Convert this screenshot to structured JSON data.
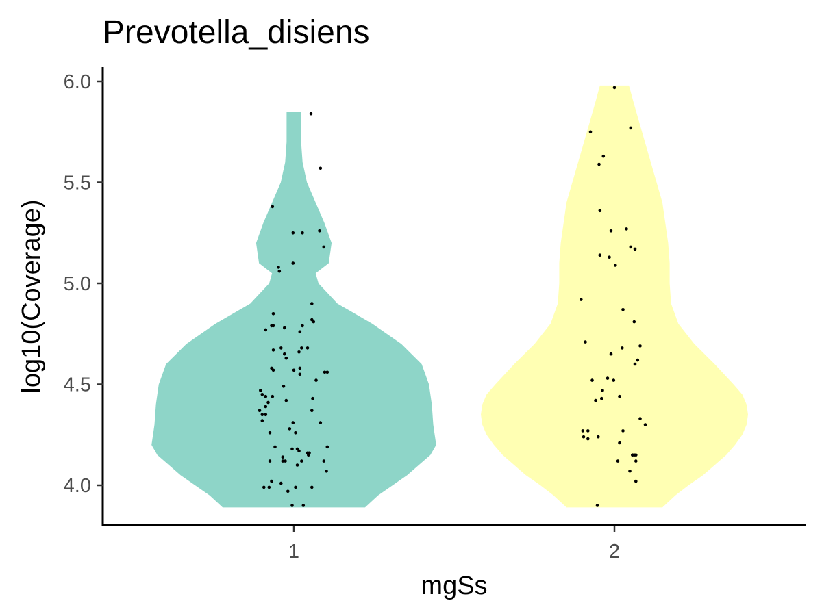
{
  "chart_data": {
    "type": "violin",
    "title": "Prevotella_disiens",
    "xlabel": "mgSs",
    "ylabel": "log10(Coverage)",
    "categories": [
      "1",
      "2"
    ],
    "ylim": [
      3.87,
      6.07
    ],
    "yticks": [
      4.0,
      4.5,
      5.0,
      5.5,
      6.0
    ],
    "ytick_labels": [
      "4.0",
      "4.5",
      "5.0",
      "5.5",
      "6.0"
    ],
    "grid": false,
    "legend": "none",
    "colors": {
      "1": "#8ED5C8",
      "2": "#FFFFB3"
    },
    "violins": [
      {
        "category": "1",
        "y_range": [
          3.89,
          5.85
        ],
        "density": [
          [
            3.89,
            0.49
          ],
          [
            3.95,
            0.58
          ],
          [
            4.0,
            0.68
          ],
          [
            4.05,
            0.78
          ],
          [
            4.1,
            0.86
          ],
          [
            4.15,
            0.94
          ],
          [
            4.2,
            0.98
          ],
          [
            4.25,
            0.97
          ],
          [
            4.3,
            0.96
          ],
          [
            4.4,
            0.95
          ],
          [
            4.5,
            0.93
          ],
          [
            4.6,
            0.88
          ],
          [
            4.7,
            0.74
          ],
          [
            4.8,
            0.54
          ],
          [
            4.9,
            0.3
          ],
          [
            5.0,
            0.17
          ],
          [
            5.05,
            0.15
          ],
          [
            5.1,
            0.24
          ],
          [
            5.2,
            0.26
          ],
          [
            5.3,
            0.21
          ],
          [
            5.4,
            0.15
          ],
          [
            5.5,
            0.09
          ],
          [
            5.6,
            0.06
          ],
          [
            5.7,
            0.05
          ],
          [
            5.85,
            0.05
          ]
        ],
        "points": [
          [
            5.84,
            0.2
          ],
          [
            5.57,
            0.31
          ],
          [
            5.38,
            -0.25
          ],
          [
            5.26,
            0.3
          ],
          [
            5.25,
            -0.01
          ],
          [
            5.25,
            0.1
          ],
          [
            5.18,
            0.35
          ],
          [
            5.1,
            -0.01
          ],
          [
            5.08,
            -0.18
          ],
          [
            5.06,
            -0.17
          ],
          [
            4.9,
            0.21
          ],
          [
            4.85,
            -0.24
          ],
          [
            4.82,
            0.21
          ],
          [
            4.81,
            0.23
          ],
          [
            4.79,
            -0.26
          ],
          [
            4.79,
            -0.24
          ],
          [
            4.79,
            0.1
          ],
          [
            4.78,
            -0.11
          ],
          [
            4.77,
            -0.33
          ],
          [
            4.76,
            0.07
          ],
          [
            4.68,
            -0.15
          ],
          [
            4.68,
            0.09
          ],
          [
            4.68,
            0.16
          ],
          [
            4.67,
            -0.24
          ],
          [
            4.66,
            0.06
          ],
          [
            4.65,
            -0.11
          ],
          [
            4.63,
            -0.09
          ],
          [
            4.58,
            -0.26
          ],
          [
            4.58,
            0.07
          ],
          [
            4.57,
            -0.24
          ],
          [
            4.57,
            0.0
          ],
          [
            4.56,
            0.36
          ],
          [
            4.56,
            0.39
          ],
          [
            4.55,
            0.07
          ],
          [
            4.52,
            0.26
          ],
          [
            4.49,
            -0.12
          ],
          [
            4.47,
            -0.39
          ],
          [
            4.45,
            -0.37
          ],
          [
            4.44,
            -0.33
          ],
          [
            4.44,
            -0.25
          ],
          [
            4.43,
            0.22
          ],
          [
            4.42,
            -0.09
          ],
          [
            4.41,
            -0.3
          ],
          [
            4.39,
            -0.33
          ],
          [
            4.37,
            -0.4
          ],
          [
            4.37,
            0.21
          ],
          [
            4.35,
            -0.37
          ],
          [
            4.35,
            -0.33
          ],
          [
            4.32,
            -0.37
          ],
          [
            4.31,
            -0.01
          ],
          [
            4.31,
            0.31
          ],
          [
            4.28,
            -0.05
          ],
          [
            4.26,
            -0.28
          ],
          [
            4.26,
            0.02
          ],
          [
            4.19,
            -0.22
          ],
          [
            4.19,
            0.39
          ],
          [
            4.18,
            -0.02
          ],
          [
            4.18,
            0.04
          ],
          [
            4.17,
            0.06
          ],
          [
            4.16,
            0.16
          ],
          [
            4.16,
            0.18
          ],
          [
            4.15,
            0.17
          ],
          [
            4.14,
            -0.13
          ],
          [
            4.12,
            -0.28
          ],
          [
            4.12,
            -0.13
          ],
          [
            4.12,
            0.35
          ],
          [
            4.12,
            -0.1
          ],
          [
            4.12,
            0.09
          ],
          [
            4.1,
            0.04
          ],
          [
            4.07,
            0.38
          ],
          [
            4.02,
            -0.26
          ],
          [
            4.01,
            -0.15
          ],
          [
            3.99,
            -0.35
          ],
          [
            3.99,
            -0.29
          ],
          [
            3.99,
            0.02
          ],
          [
            3.99,
            0.21
          ],
          [
            3.97,
            -0.07
          ],
          [
            3.9,
            -0.02
          ],
          [
            3.9,
            0.11
          ]
        ]
      },
      {
        "category": "2",
        "y_range": [
          3.89,
          5.98
        ],
        "density": [
          [
            3.89,
            0.33
          ],
          [
            3.95,
            0.42
          ],
          [
            4.0,
            0.51
          ],
          [
            4.05,
            0.61
          ],
          [
            4.1,
            0.69
          ],
          [
            4.15,
            0.77
          ],
          [
            4.2,
            0.83
          ],
          [
            4.25,
            0.88
          ],
          [
            4.3,
            0.91
          ],
          [
            4.35,
            0.92
          ],
          [
            4.4,
            0.91
          ],
          [
            4.45,
            0.88
          ],
          [
            4.5,
            0.82
          ],
          [
            4.6,
            0.69
          ],
          [
            4.7,
            0.55
          ],
          [
            4.8,
            0.44
          ],
          [
            4.9,
            0.39
          ],
          [
            5.0,
            0.38
          ],
          [
            5.1,
            0.38
          ],
          [
            5.2,
            0.37
          ],
          [
            5.3,
            0.35
          ],
          [
            5.4,
            0.33
          ],
          [
            5.5,
            0.29
          ],
          [
            5.6,
            0.25
          ],
          [
            5.7,
            0.21
          ],
          [
            5.8,
            0.17
          ],
          [
            5.9,
            0.13
          ],
          [
            5.98,
            0.1
          ]
        ],
        "points": [
          [
            5.97,
            0.0
          ],
          [
            5.77,
            0.19
          ],
          [
            5.75,
            -0.28
          ],
          [
            5.63,
            -0.13
          ],
          [
            5.59,
            -0.18
          ],
          [
            5.36,
            -0.17
          ],
          [
            5.27,
            0.14
          ],
          [
            5.26,
            -0.04
          ],
          [
            5.18,
            0.19
          ],
          [
            5.17,
            0.24
          ],
          [
            5.14,
            -0.17
          ],
          [
            5.13,
            -0.06
          ],
          [
            5.09,
            0.01
          ],
          [
            4.92,
            -0.39
          ],
          [
            4.87,
            0.1
          ],
          [
            4.81,
            0.23
          ],
          [
            4.71,
            -0.34
          ],
          [
            4.69,
            0.3
          ],
          [
            4.68,
            0.09
          ],
          [
            4.65,
            -0.04
          ],
          [
            4.62,
            0.27
          ],
          [
            4.6,
            0.24
          ],
          [
            4.53,
            -0.08
          ],
          [
            4.52,
            -0.26
          ],
          [
            4.52,
            -0.01
          ],
          [
            4.47,
            -0.14
          ],
          [
            4.44,
            0.06
          ],
          [
            4.43,
            -0.15
          ],
          [
            4.42,
            -0.22
          ],
          [
            4.33,
            0.3
          ],
          [
            4.3,
            0.36
          ],
          [
            4.27,
            -0.37
          ],
          [
            4.27,
            -0.31
          ],
          [
            4.27,
            0.1
          ],
          [
            4.24,
            -0.36
          ],
          [
            4.24,
            -0.19
          ],
          [
            4.23,
            -0.31
          ],
          [
            4.21,
            0.06
          ],
          [
            4.15,
            0.21
          ],
          [
            4.15,
            0.23
          ],
          [
            4.15,
            0.25
          ],
          [
            4.12,
            0.04
          ],
          [
            4.12,
            0.25
          ],
          [
            4.07,
            0.18
          ],
          [
            4.02,
            0.25
          ],
          [
            3.9,
            -0.2
          ]
        ]
      }
    ]
  }
}
